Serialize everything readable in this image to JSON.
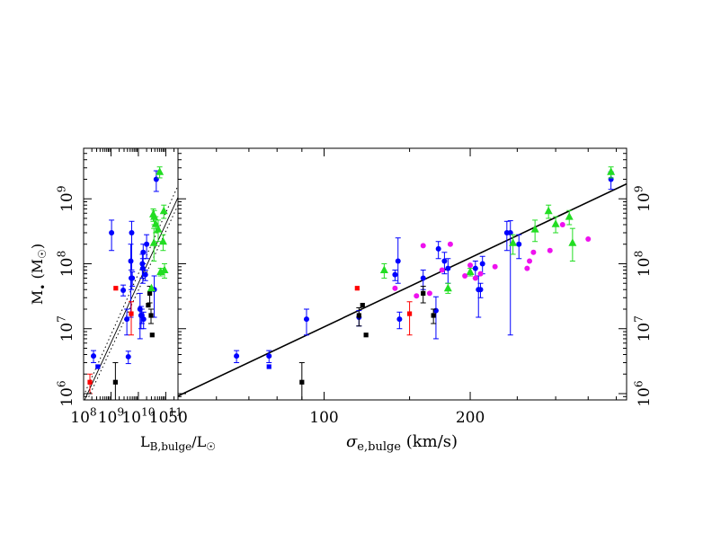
{
  "chart_data": [
    {
      "type": "scatter",
      "panel": "left",
      "x_scale": "log",
      "y_scale": "log",
      "xlim": [
        100000000.0,
        280000000000.0
      ],
      "ylim": [
        800000.0,
        6000000000.0
      ],
      "xlabel": "L_B,bulge/L_☉",
      "ylabel": "M• (M_☉)",
      "x_tick_labels": [
        "10^8",
        "10^9",
        "10^10",
        "10^11"
      ],
      "y_tick_labels": [
        "10^6",
        "10^7",
        "10^8",
        "10^9"
      ],
      "fit_line": {
        "x": [
          100000000.0,
          280000000000.0
        ],
        "y": [
          740000.0,
          1050000000.0
        ]
      },
      "fit_bounds": [
        {
          "x": [
            100000000.0,
            280000000000.0
          ],
          "y": [
            930000.0,
            1600000000.0
          ]
        },
        {
          "x": [
            100000000.0,
            280000000000.0
          ],
          "y": [
            600000.0,
            800000000.0
          ]
        }
      ],
      "series": [
        {
          "color": "#0000ff",
          "marker": "circle",
          "points": [
            {
              "x": 230000000.0,
              "y": 3800000.0,
              "lo": 3000000.0,
              "hi": 4600000.0
            },
            {
              "x": 1050000000.0,
              "y": 300000000.0,
              "lo": 160000000.0,
              "hi": 470000000.0
            },
            {
              "x": 2800000000.0,
              "y": 39000000.0,
              "lo": 32000000.0,
              "hi": 47000000.0
            },
            {
              "x": 3800000000.0,
              "y": 14000000.0,
              "lo": 8000000.0,
              "hi": 20000000.0
            },
            {
              "x": 4300000000.0,
              "y": 3700000.0,
              "lo": 2900000.0,
              "hi": 4500000.0
            },
            {
              "x": 5300000000.0,
              "y": 110000000.0,
              "lo": 15000000.0,
              "hi": 200000000.0
            },
            {
              "x": 5500000000.0,
              "y": 60000000.0,
              "lo": 40000000.0,
              "hi": 80000000.0
            },
            {
              "x": 5700000000.0,
              "y": 300000000.0,
              "lo": 80000000.0,
              "hi": 450000000.0
            },
            {
              "x": 6000000000.0,
              "y": 60000000.0,
              "lo": 45000000.0,
              "hi": 75000000.0
            },
            {
              "x": 11500000000.0,
              "y": 20000000.0,
              "lo": 7000000.0,
              "hi": 35000000.0
            },
            {
              "x": 12500000000.0,
              "y": 16000000.0,
              "lo": 10000000.0,
              "hi": 22000000.0
            },
            {
              "x": 13500000000.0,
              "y": 16000000.0,
              "lo": 12000000.0,
              "hi": 20000000.0
            },
            {
              "x": 14000000000.0,
              "y": 100000000.0,
              "lo": 60000000.0,
              "hi": 140000000.0
            },
            {
              "x": 14500000000.0,
              "y": 85000000.0,
              "lo": 50000000.0,
              "hi": 120000000.0
            },
            {
              "x": 15000000000.0,
              "y": 150000000.0,
              "lo": 100000000.0,
              "hi": 200000000.0
            },
            {
              "x": 15500000000.0,
              "y": 14000000.0,
              "lo": 10000000.0,
              "hi": 18000000.0
            },
            {
              "x": 18000000000.0,
              "y": 68000000.0,
              "lo": 55000000.0,
              "hi": 80000000.0
            },
            {
              "x": 20000000000.0,
              "y": 200000000.0,
              "lo": 120000000.0,
              "hi": 280000000.0
            },
            {
              "x": 38000000000.0,
              "y": 40000000.0,
              "lo": 15000000.0,
              "hi": 65000000.0
            },
            {
              "x": 45000000000.0,
              "y": 2000000000.0,
              "lo": 1300000000.0,
              "hi": 2700000000.0
            }
          ]
        },
        {
          "color": "#0000ff",
          "marker": "square",
          "points": [
            {
              "x": 330000000.0,
              "y": 2600000.0
            }
          ]
        },
        {
          "color": "#ff0000",
          "marker": "square",
          "points": [
            {
              "x": 170000000.0,
              "y": 1500000.0,
              "lo": 1000000.0,
              "hi": 2000000.0
            },
            {
              "x": 1500000000.0,
              "y": 42000000.0
            },
            {
              "x": 5500000000.0,
              "y": 17000000.0,
              "lo": 8000000.0,
              "hi": 26000000.0
            }
          ]
        },
        {
          "color": "#000000",
          "marker": "square",
          "points": [
            {
              "x": 1450000000.0,
              "y": 1500000.0,
              "lo": 800000.0,
              "hi": 3000000.0
            },
            {
              "x": 23000000000.0,
              "y": 23000000.0
            },
            {
              "x": 26000000000.0,
              "y": 35000000.0,
              "lo": 25000000.0,
              "hi": 45000000.0
            },
            {
              "x": 29000000000.0,
              "y": 16000000.0,
              "lo": 12000000.0,
              "hi": 20000000.0
            },
            {
              "x": 32000000000.0,
              "y": 8000000.0
            }
          ]
        },
        {
          "color": "#22dd22",
          "marker": "triangle",
          "points": [
            {
              "x": 30000000000.0,
              "y": 42000000.0
            },
            {
              "x": 35000000000.0,
              "y": 580000000.0,
              "lo": 450000000.0,
              "hi": 700000000.0
            },
            {
              "x": 37000000000.0,
              "y": 210000000.0,
              "lo": 110000000.0,
              "hi": 350000000.0
            },
            {
              "x": 38000000000.0,
              "y": 530000000.0,
              "lo": 400000000.0,
              "hi": 660000000.0
            },
            {
              "x": 43000000000.0,
              "y": 410000000.0,
              "lo": 300000000.0,
              "hi": 530000000.0
            },
            {
              "x": 53000000000.0,
              "y": 340000000.0,
              "lo": 220000000.0,
              "hi": 470000000.0
            },
            {
              "x": 60000000000.0,
              "y": 2600000000.0,
              "lo": 2100000000.0,
              "hi": 3100000000.0
            },
            {
              "x": 65000000000.0,
              "y": 75000000.0,
              "lo": 65000000.0,
              "hi": 85000000.0
            },
            {
              "x": 80000000000.0,
              "y": 220000000.0,
              "lo": 160000000.0,
              "hi": 280000000.0
            },
            {
              "x": 85000000000.0,
              "y": 650000000.0,
              "lo": 500000000.0,
              "hi": 800000000.0
            },
            {
              "x": 90000000000.0,
              "y": 80000000.0,
              "lo": 60000000.0,
              "hi": 100000000.0
            }
          ]
        }
      ]
    },
    {
      "type": "scatter",
      "panel": "right",
      "x_scale": "log",
      "y_scale": "log",
      "xlim": [
        50,
        420
      ],
      "ylim": [
        800000.0,
        6000000000.0
      ],
      "xlabel": "σ_e,bulge (km/s)",
      "x_tick_labels": [
        "50",
        "100",
        "200"
      ],
      "y_tick_labels": [
        "10^6",
        "10^7",
        "10^8",
        "10^9"
      ],
      "fit_line": {
        "x": [
          50,
          420
        ],
        "y": [
          920000.0,
          1700000000.0
        ]
      },
      "series": [
        {
          "color": "#0000ff",
          "marker": "circle",
          "points": [
            {
              "x": 66,
              "y": 3800000.0,
              "lo": 3000000.0,
              "hi": 4600000.0
            },
            {
              "x": 77,
              "y": 3800000.0,
              "lo": 3000000.0,
              "hi": 4600000.0
            },
            {
              "x": 92,
              "y": 14000000.0,
              "lo": 8000000.0,
              "hi": 20000000.0
            },
            {
              "x": 118,
              "y": 15000000.0,
              "lo": 11000000.0,
              "hi": 19000000.0
            },
            {
              "x": 140,
              "y": 68000000.0,
              "lo": 55000000.0,
              "hi": 80000000.0
            },
            {
              "x": 142,
              "y": 110000000.0,
              "lo": 50000000.0,
              "hi": 250000000.0
            },
            {
              "x": 143,
              "y": 14000000.0,
              "lo": 10000000.0,
              "hi": 18000000.0
            },
            {
              "x": 160,
              "y": 60000000.0,
              "lo": 40000000.0,
              "hi": 80000000.0
            },
            {
              "x": 170,
              "y": 19000000.0,
              "lo": 7000000.0,
              "hi": 31000000.0
            },
            {
              "x": 172,
              "y": 170000000.0,
              "lo": 120000000.0,
              "hi": 220000000.0
            },
            {
              "x": 177,
              "y": 110000000.0,
              "lo": 70000000.0,
              "hi": 150000000.0
            },
            {
              "x": 180,
              "y": 85000000.0,
              "lo": 50000000.0,
              "hi": 120000000.0
            },
            {
              "x": 205,
              "y": 85000000.0,
              "lo": 60000000.0,
              "hi": 110000000.0
            },
            {
              "x": 208,
              "y": 40000000.0,
              "lo": 15000000.0,
              "hi": 65000000.0
            },
            {
              "x": 210,
              "y": 40000000.0,
              "lo": 30000000.0,
              "hi": 50000000.0
            },
            {
              "x": 212,
              "y": 100000000.0,
              "lo": 70000000.0,
              "hi": 130000000.0
            },
            {
              "x": 238,
              "y": 300000000.0,
              "lo": 160000000.0,
              "hi": 450000000.0
            },
            {
              "x": 242,
              "y": 300000000.0,
              "lo": 8000000.0,
              "hi": 460000000.0
            },
            {
              "x": 252,
              "y": 200000000.0,
              "lo": 120000000.0,
              "hi": 280000000.0
            },
            {
              "x": 390,
              "y": 2000000000.0,
              "lo": 1400000000.0,
              "hi": 2600000000.0
            }
          ]
        },
        {
          "color": "#0000ff",
          "marker": "square",
          "points": [
            {
              "x": 77,
              "y": 2600000.0
            }
          ]
        },
        {
          "color": "#ff0000",
          "marker": "square",
          "points": [
            {
              "x": 117,
              "y": 42000000.0
            },
            {
              "x": 150,
              "y": 17000000.0,
              "lo": 8000000.0,
              "hi": 26000000.0
            }
          ]
        },
        {
          "color": "#000000",
          "marker": "square",
          "points": [
            {
              "x": 90,
              "y": 1500000.0,
              "lo": 800000.0,
              "hi": 3000000.0
            },
            {
              "x": 118,
              "y": 16000000.0,
              "lo": 11000000.0,
              "hi": 21000000.0
            },
            {
              "x": 120,
              "y": 23000000.0
            },
            {
              "x": 122,
              "y": 8000000.0
            },
            {
              "x": 160,
              "y": 35000000.0,
              "lo": 25000000.0,
              "hi": 45000000.0
            },
            {
              "x": 168,
              "y": 16000000.0,
              "lo": 12000000.0,
              "hi": 20000000.0
            }
          ]
        },
        {
          "color": "#22dd22",
          "marker": "triangle",
          "points": [
            {
              "x": 133,
              "y": 80000000.0,
              "lo": 60000000.0,
              "hi": 100000000.0
            },
            {
              "x": 180,
              "y": 42000000.0,
              "lo": 35000000.0,
              "hi": 50000000.0
            },
            {
              "x": 200,
              "y": 75000000.0,
              "lo": 65000000.0,
              "hi": 85000000.0
            },
            {
              "x": 245,
              "y": 210000000.0,
              "lo": 140000000.0,
              "hi": 280000000.0
            },
            {
              "x": 272,
              "y": 340000000.0,
              "lo": 220000000.0,
              "hi": 470000000.0
            },
            {
              "x": 290,
              "y": 650000000.0,
              "lo": 500000000.0,
              "hi": 800000000.0
            },
            {
              "x": 300,
              "y": 410000000.0,
              "lo": 300000000.0,
              "hi": 530000000.0
            },
            {
              "x": 320,
              "y": 530000000.0,
              "lo": 400000000.0,
              "hi": 660000000.0
            },
            {
              "x": 325,
              "y": 210000000.0,
              "lo": 110000000.0,
              "hi": 350000000.0
            },
            {
              "x": 390,
              "y": 2600000000.0,
              "lo": 2100000000.0,
              "hi": 3100000000.0
            }
          ]
        },
        {
          "color": "#ee11ee",
          "marker": "circle",
          "points": [
            {
              "x": 140,
              "y": 42000000.0
            },
            {
              "x": 155,
              "y": 32000000.0
            },
            {
              "x": 160,
              "y": 190000000.0
            },
            {
              "x": 165,
              "y": 35000000.0
            },
            {
              "x": 175,
              "y": 80000000.0
            },
            {
              "x": 182,
              "y": 200000000.0
            },
            {
              "x": 195,
              "y": 65000000.0
            },
            {
              "x": 200,
              "y": 95000000.0
            },
            {
              "x": 205,
              "y": 60000000.0
            },
            {
              "x": 210,
              "y": 70000000.0
            },
            {
              "x": 225,
              "y": 90000000.0
            },
            {
              "x": 262,
              "y": 85000000.0
            },
            {
              "x": 265,
              "y": 110000000.0
            },
            {
              "x": 270,
              "y": 150000000.0
            },
            {
              "x": 292,
              "y": 160000000.0
            },
            {
              "x": 310,
              "y": 400000000.0
            },
            {
              "x": 350,
              "y": 240000000.0
            }
          ]
        }
      ]
    }
  ]
}
